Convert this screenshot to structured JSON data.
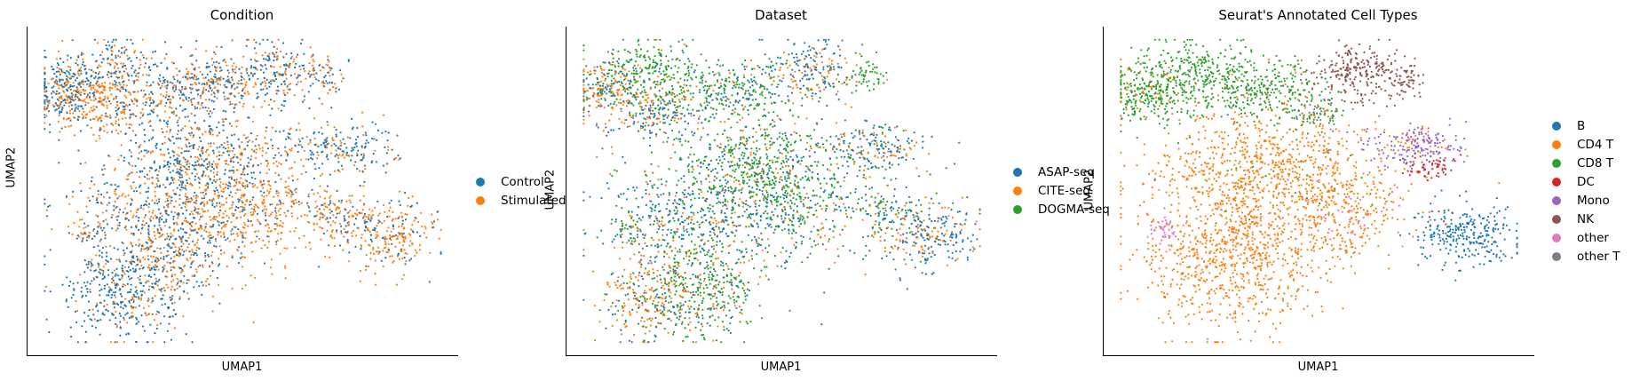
{
  "chart_data": [
    {
      "type": "scatter",
      "title": "Condition",
      "xlabel": "UMAP1",
      "ylabel": "UMAP2",
      "grid": false,
      "legend_position": "right",
      "categories": [
        {
          "name": "Control",
          "color": "#1f77b4"
        },
        {
          "name": "Stimulated",
          "color": "#ff7f0e"
        }
      ],
      "clusters": [
        {
          "cx": 0.09,
          "cy": 0.81,
          "sx": 0.045,
          "sy": 0.05,
          "n": 260,
          "mix": [
            0.65,
            0.35
          ]
        },
        {
          "cx": 0.17,
          "cy": 0.76,
          "sx": 0.06,
          "sy": 0.045,
          "n": 260,
          "mix": [
            0.3,
            0.7
          ]
        },
        {
          "cx": 0.2,
          "cy": 0.88,
          "sx": 0.05,
          "sy": 0.04,
          "n": 160,
          "mix": [
            0.55,
            0.45
          ]
        },
        {
          "cx": 0.35,
          "cy": 0.8,
          "sx": 0.07,
          "sy": 0.05,
          "n": 280,
          "mix": [
            0.55,
            0.45
          ]
        },
        {
          "cx": 0.45,
          "cy": 0.84,
          "sx": 0.05,
          "sy": 0.04,
          "n": 150,
          "mix": [
            0.5,
            0.5
          ]
        },
        {
          "cx": 0.58,
          "cy": 0.86,
          "sx": 0.05,
          "sy": 0.05,
          "n": 220,
          "mix": [
            0.5,
            0.5
          ]
        },
        {
          "cx": 0.7,
          "cy": 0.85,
          "sx": 0.02,
          "sy": 0.03,
          "n": 50,
          "mix": [
            0.5,
            0.5
          ]
        },
        {
          "cx": 0.72,
          "cy": 0.63,
          "sx": 0.07,
          "sy": 0.04,
          "n": 200,
          "mix": [
            0.65,
            0.35
          ]
        },
        {
          "cx": 0.4,
          "cy": 0.6,
          "sx": 0.11,
          "sy": 0.08,
          "n": 520,
          "mix": [
            0.65,
            0.35
          ]
        },
        {
          "cx": 0.52,
          "cy": 0.45,
          "sx": 0.11,
          "sy": 0.09,
          "n": 520,
          "mix": [
            0.2,
            0.8
          ]
        },
        {
          "cx": 0.3,
          "cy": 0.45,
          "sx": 0.1,
          "sy": 0.08,
          "n": 380,
          "mix": [
            0.55,
            0.45
          ]
        },
        {
          "cx": 0.22,
          "cy": 0.2,
          "sx": 0.07,
          "sy": 0.08,
          "n": 440,
          "mix": [
            0.75,
            0.25
          ]
        },
        {
          "cx": 0.34,
          "cy": 0.3,
          "sx": 0.07,
          "sy": 0.07,
          "n": 260,
          "mix": [
            0.4,
            0.6
          ]
        },
        {
          "cx": 0.84,
          "cy": 0.37,
          "sx": 0.06,
          "sy": 0.05,
          "n": 260,
          "mix": [
            0.3,
            0.7
          ]
        },
        {
          "cx": 0.73,
          "cy": 0.43,
          "sx": 0.04,
          "sy": 0.03,
          "n": 90,
          "mix": [
            0.4,
            0.6
          ]
        },
        {
          "cx": 0.14,
          "cy": 0.38,
          "sx": 0.015,
          "sy": 0.02,
          "n": 30,
          "mix": [
            0.5,
            0.5
          ]
        }
      ]
    },
    {
      "type": "scatter",
      "title": "Dataset",
      "xlabel": "UMAP1",
      "ylabel": "UMAP2",
      "grid": false,
      "legend_position": "right",
      "categories": [
        {
          "name": "ASAP-seq",
          "color": "#1f77b4"
        },
        {
          "name": "CITE-seq",
          "color": "#ff7f0e"
        },
        {
          "name": "DOGMA-seq",
          "color": "#2ca02c"
        }
      ],
      "clusters": [
        {
          "cx": 0.09,
          "cy": 0.8,
          "sx": 0.04,
          "sy": 0.05,
          "n": 220,
          "mix": [
            0.3,
            0.55,
            0.15
          ]
        },
        {
          "cx": 0.19,
          "cy": 0.86,
          "sx": 0.06,
          "sy": 0.05,
          "n": 260,
          "mix": [
            0.1,
            0.1,
            0.8
          ]
        },
        {
          "cx": 0.22,
          "cy": 0.74,
          "sx": 0.06,
          "sy": 0.04,
          "n": 200,
          "mix": [
            0.45,
            0.35,
            0.2
          ]
        },
        {
          "cx": 0.38,
          "cy": 0.8,
          "sx": 0.07,
          "sy": 0.05,
          "n": 280,
          "mix": [
            0.25,
            0.15,
            0.6
          ]
        },
        {
          "cx": 0.57,
          "cy": 0.86,
          "sx": 0.05,
          "sy": 0.05,
          "n": 220,
          "mix": [
            0.55,
            0.35,
            0.1
          ]
        },
        {
          "cx": 0.7,
          "cy": 0.85,
          "sx": 0.02,
          "sy": 0.03,
          "n": 50,
          "mix": [
            0.05,
            0.05,
            0.9
          ]
        },
        {
          "cx": 0.72,
          "cy": 0.63,
          "sx": 0.07,
          "sy": 0.04,
          "n": 200,
          "mix": [
            0.55,
            0.3,
            0.15
          ]
        },
        {
          "cx": 0.42,
          "cy": 0.58,
          "sx": 0.11,
          "sy": 0.08,
          "n": 520,
          "mix": [
            0.2,
            0.15,
            0.65
          ]
        },
        {
          "cx": 0.5,
          "cy": 0.45,
          "sx": 0.11,
          "sy": 0.09,
          "n": 520,
          "mix": [
            0.35,
            0.2,
            0.45
          ]
        },
        {
          "cx": 0.28,
          "cy": 0.42,
          "sx": 0.1,
          "sy": 0.08,
          "n": 380,
          "mix": [
            0.6,
            0.15,
            0.25
          ]
        },
        {
          "cx": 0.2,
          "cy": 0.18,
          "sx": 0.06,
          "sy": 0.07,
          "n": 300,
          "mix": [
            0.2,
            0.55,
            0.25
          ]
        },
        {
          "cx": 0.32,
          "cy": 0.22,
          "sx": 0.07,
          "sy": 0.08,
          "n": 360,
          "mix": [
            0.15,
            0.1,
            0.75
          ]
        },
        {
          "cx": 0.84,
          "cy": 0.37,
          "sx": 0.06,
          "sy": 0.05,
          "n": 260,
          "mix": [
            0.6,
            0.3,
            0.1
          ]
        },
        {
          "cx": 0.74,
          "cy": 0.44,
          "sx": 0.04,
          "sy": 0.03,
          "n": 90,
          "mix": [
            0.3,
            0.1,
            0.6
          ]
        },
        {
          "cx": 0.15,
          "cy": 0.38,
          "sx": 0.02,
          "sy": 0.03,
          "n": 40,
          "mix": [
            0.1,
            0.1,
            0.8
          ]
        }
      ]
    },
    {
      "type": "scatter",
      "title": "Seurat's Annotated Cell Types",
      "xlabel": "UMAP1",
      "ylabel": "UMAP2",
      "grid": false,
      "legend_position": "right",
      "categories": [
        {
          "name": "B",
          "color": "#1f77b4"
        },
        {
          "name": "CD4 T",
          "color": "#ff7f0e"
        },
        {
          "name": "CD8 T",
          "color": "#2ca02c"
        },
        {
          "name": "DC",
          "color": "#d62728"
        },
        {
          "name": "Mono",
          "color": "#9467bd"
        },
        {
          "name": "NK",
          "color": "#8c564b"
        },
        {
          "name": "other",
          "color": "#e377c2"
        },
        {
          "name": "other T",
          "color": "#7f7f7f"
        }
      ],
      "clusters": [
        {
          "cx": 0.11,
          "cy": 0.8,
          "sx": 0.05,
          "sy": 0.05,
          "n": 300,
          "mix": [
            0,
            0.15,
            0.85,
            0,
            0,
            0,
            0,
            0
          ]
        },
        {
          "cx": 0.22,
          "cy": 0.86,
          "sx": 0.06,
          "sy": 0.05,
          "n": 250,
          "mix": [
            0,
            0,
            1,
            0,
            0,
            0,
            0,
            0
          ]
        },
        {
          "cx": 0.38,
          "cy": 0.8,
          "sx": 0.07,
          "sy": 0.05,
          "n": 300,
          "mix": [
            0,
            0.05,
            0.9,
            0,
            0,
            0,
            0,
            0.05
          ]
        },
        {
          "cx": 0.5,
          "cy": 0.74,
          "sx": 0.04,
          "sy": 0.03,
          "n": 80,
          "mix": [
            0,
            0.1,
            0.5,
            0,
            0,
            0,
            0,
            0.4
          ]
        },
        {
          "cx": 0.59,
          "cy": 0.86,
          "sx": 0.05,
          "sy": 0.045,
          "n": 240,
          "mix": [
            0,
            0,
            0,
            0,
            0,
            1,
            0,
            0
          ]
        },
        {
          "cx": 0.7,
          "cy": 0.85,
          "sx": 0.02,
          "sy": 0.03,
          "n": 60,
          "mix": [
            0,
            0,
            0,
            0,
            0,
            1,
            0,
            0
          ]
        },
        {
          "cx": 0.73,
          "cy": 0.64,
          "sx": 0.06,
          "sy": 0.035,
          "n": 200,
          "mix": [
            0,
            0.15,
            0,
            0,
            0.85,
            0,
            0,
            0
          ]
        },
        {
          "cx": 0.75,
          "cy": 0.57,
          "sx": 0.03,
          "sy": 0.02,
          "n": 60,
          "mix": [
            0,
            0,
            0,
            1,
            0,
            0,
            0,
            0
          ]
        },
        {
          "cx": 0.38,
          "cy": 0.56,
          "sx": 0.13,
          "sy": 0.09,
          "n": 800,
          "mix": [
            0,
            0.97,
            0.03,
            0,
            0,
            0,
            0,
            0
          ]
        },
        {
          "cx": 0.3,
          "cy": 0.3,
          "sx": 0.1,
          "sy": 0.11,
          "n": 800,
          "mix": [
            0,
            1,
            0,
            0,
            0,
            0,
            0,
            0
          ]
        },
        {
          "cx": 0.55,
          "cy": 0.42,
          "sx": 0.07,
          "sy": 0.07,
          "n": 260,
          "mix": [
            0,
            0.9,
            0,
            0,
            0,
            0,
            0.1,
            0
          ]
        },
        {
          "cx": 0.84,
          "cy": 0.37,
          "sx": 0.06,
          "sy": 0.05,
          "n": 280,
          "mix": [
            1,
            0,
            0,
            0,
            0,
            0,
            0,
            0
          ]
        },
        {
          "cx": 0.14,
          "cy": 0.38,
          "sx": 0.015,
          "sy": 0.02,
          "n": 40,
          "mix": [
            0,
            0,
            0,
            0,
            0,
            0,
            1,
            0
          ]
        }
      ]
    }
  ]
}
